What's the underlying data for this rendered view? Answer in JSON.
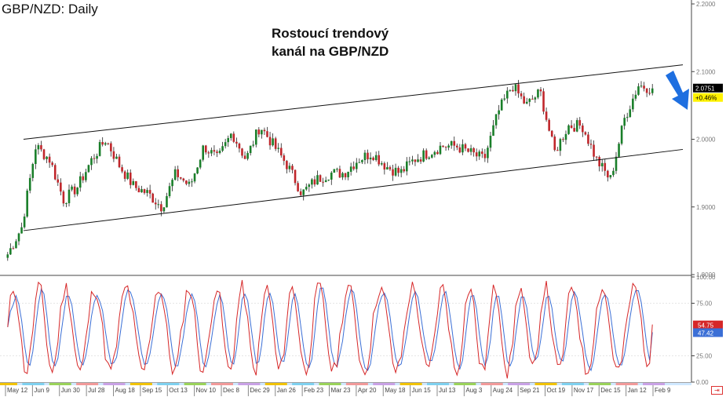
{
  "title": "GBP/NZD: Daily",
  "annotation": {
    "line1": "Rostoucí trendový",
    "line2": "kanál na GBP/NZD"
  },
  "colors": {
    "up": "#1a7f2a",
    "down": "#c0262b",
    "stochK": "#d62728",
    "stochD": "#3b6fd6",
    "arrow": "#1e6fe0",
    "priceBadge": "#000000",
    "changeBadge": "#fff200"
  },
  "chart_data": [
    {
      "type": "candlestick",
      "title": "GBP/NZD: Daily",
      "ylim": [
        1.8,
        2.2
      ],
      "y_ticks": [
        "2.2000",
        "2.1000",
        "2.0000",
        "1.9000",
        "1.8000"
      ],
      "x_ticks": [
        "May 12",
        "Jun 9",
        "Jun 30",
        "Jul 28",
        "Aug 18",
        "Sep 15",
        "Oct 13",
        "Nov 10",
        "Dec 8",
        "Dec 29",
        "Jan 26",
        "Feb 23",
        "Mar 23",
        "Apr 20",
        "May 18",
        "Jun 15",
        "Jul 13",
        "Aug 3",
        "Aug 24",
        "Sep 21",
        "Oct 19",
        "Nov 17",
        "Dec 15",
        "Jan 12",
        "Feb 9"
      ],
      "last_price": "2.0751",
      "change": "+0.46%",
      "trend_channel": {
        "upper": {
          "from": [
            "May 12",
            2.0
          ],
          "to": [
            "Feb 9",
            2.11
          ]
        },
        "lower": {
          "from": [
            "May 12",
            1.865
          ],
          "to": [
            "Feb 9",
            1.985
          ]
        }
      },
      "approx_path": [
        [
          "May 12",
          1.83
        ],
        [
          "May 26",
          1.87
        ],
        [
          "Jun 9",
          1.99
        ],
        [
          "Jun 23",
          1.97
        ],
        [
          "Jul 7",
          1.91
        ],
        [
          "Jul 21",
          1.93
        ],
        [
          "Jul 28",
          1.97
        ],
        [
          "Aug 11",
          2.0
        ],
        [
          "Aug 25",
          1.96
        ],
        [
          "Sep 8",
          1.93
        ],
        [
          "Sep 22",
          1.92
        ],
        [
          "Oct 6",
          1.9
        ],
        [
          "Oct 20",
          1.95
        ],
        [
          "Nov 3",
          1.93
        ],
        [
          "Nov 17",
          1.99
        ],
        [
          "Dec 1",
          1.97
        ],
        [
          "Dec 15",
          2.01
        ],
        [
          "Dec 29",
          1.97
        ],
        [
          "Jan 12",
          2.02
        ],
        [
          "Jan 26",
          1.99
        ],
        [
          "Feb 9",
          1.96
        ],
        [
          "Feb 23",
          1.92
        ],
        [
          "Mar 9",
          1.94
        ],
        [
          "Mar 23",
          1.95
        ],
        [
          "Apr 6",
          1.95
        ],
        [
          "Apr 20",
          1.97
        ],
        [
          "May 4",
          1.98
        ],
        [
          "May 18",
          1.96
        ],
        [
          "Jun 1",
          1.95
        ],
        [
          "Jun 15",
          1.97
        ],
        [
          "Jun 29",
          1.98
        ],
        [
          "Jul 13",
          1.99
        ],
        [
          "Jul 27",
          1.99
        ],
        [
          "Aug 10",
          1.98
        ],
        [
          "Aug 24",
          1.97
        ],
        [
          "Sep 7",
          2.04
        ],
        [
          "Sep 21",
          2.08
        ],
        [
          "Oct 5",
          2.05
        ],
        [
          "Oct 19",
          2.07
        ],
        [
          "Nov 2",
          1.98
        ],
        [
          "Nov 17",
          2.02
        ],
        [
          "Dec 1",
          2.02
        ],
        [
          "Dec 15",
          1.97
        ],
        [
          "Dec 29",
          1.94
        ],
        [
          "Jan 12",
          2.03
        ],
        [
          "Jan 26",
          2.08
        ],
        [
          "Feb 9",
          2.0751
        ]
      ]
    },
    {
      "type": "line",
      "ylim": [
        0,
        100
      ],
      "y_ticks": [
        "100.00",
        "75.00",
        "25.00",
        "0.00"
      ],
      "series": [
        {
          "last": "54.75"
        },
        {
          "last": "47.42"
        }
      ]
    }
  ]
}
